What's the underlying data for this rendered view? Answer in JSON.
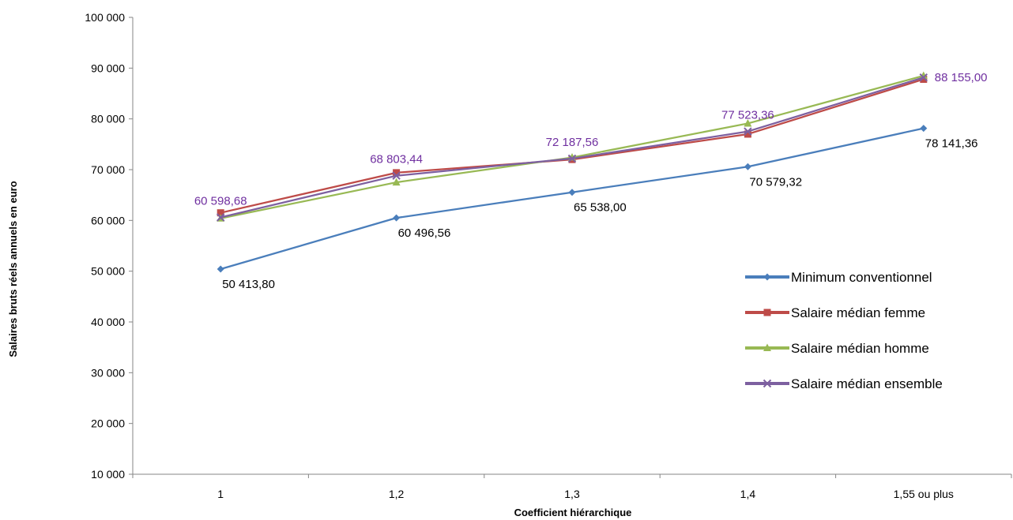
{
  "chart_data": {
    "type": "line",
    "xlabel": "Coefficient hiérarchique",
    "ylabel": "Salaires bruts réels annuels en euro",
    "categories": [
      "1",
      "1,2",
      "1,3",
      "1,4",
      "1,55 ou plus"
    ],
    "ylim": [
      10000,
      100000
    ],
    "yticks": [
      10000,
      20000,
      30000,
      40000,
      50000,
      60000,
      70000,
      80000,
      90000,
      100000
    ],
    "ytick_labels": [
      "10 000",
      "20 000",
      "30 000",
      "40 000",
      "50 000",
      "60 000",
      "70 000",
      "80 000",
      "90 000",
      "100 000"
    ],
    "grid": false,
    "legend_position": "right",
    "series": [
      {
        "name": "Minimum conventionnel",
        "color": "#4A7EBB",
        "marker": "diamond",
        "values": [
          50413.8,
          60496.56,
          65538.0,
          70579.32,
          78141.36
        ],
        "data_labels": [
          "50 413,80",
          "60 496,56",
          "65 538,00",
          "70 579,32",
          "78 141,36"
        ],
        "label_color": "#000000"
      },
      {
        "name": "Salaire médian femme",
        "color": "#BE4B48",
        "marker": "square",
        "values": [
          61500,
          69400,
          72000,
          77000,
          87800
        ]
      },
      {
        "name": "Salaire médian homme",
        "color": "#98B954",
        "marker": "triangle",
        "values": [
          60400,
          67500,
          72400,
          79100,
          88500
        ]
      },
      {
        "name": "Salaire médian ensemble",
        "color": "#7D60A0",
        "marker": "x",
        "values": [
          60598.68,
          68803.44,
          72187.56,
          77523.36,
          88155.0
        ],
        "data_labels": [
          "60 598,68",
          "68 803,44",
          "72 187,56",
          "77 523,36",
          "88 155,00"
        ],
        "label_color": "#7030A0"
      }
    ]
  }
}
